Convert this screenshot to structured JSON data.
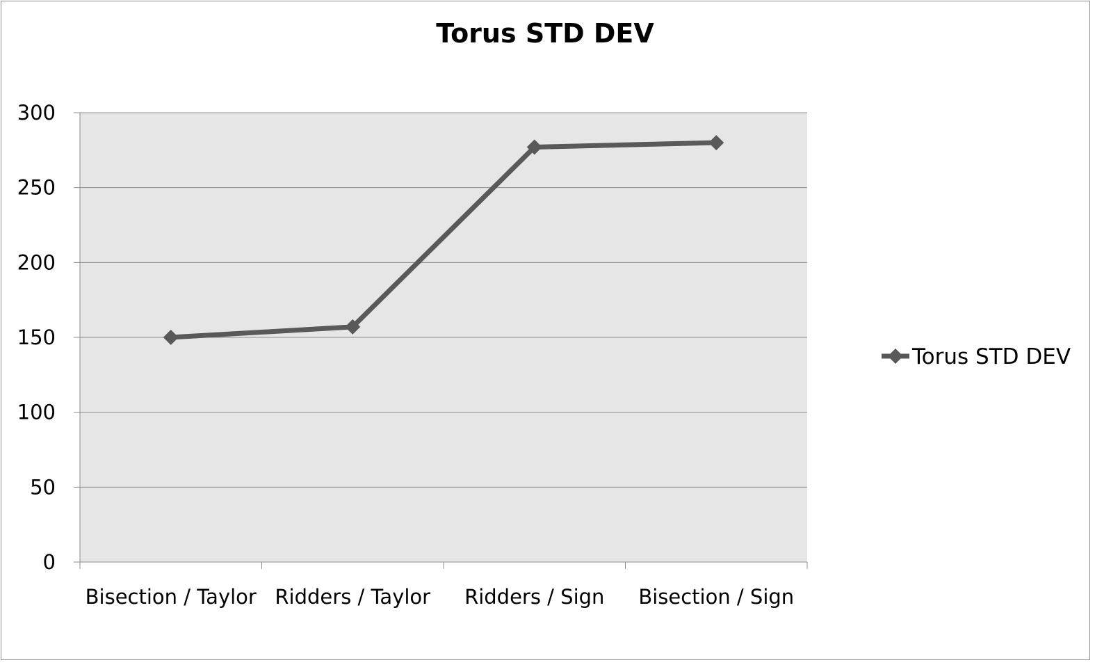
{
  "chart_data": {
    "type": "line",
    "title": "Torus STD DEV",
    "categories": [
      "Bisection / Taylor",
      "Ridders / Taylor",
      "Ridders / Sign",
      "Bisection / Sign"
    ],
    "series": [
      {
        "name": "Torus STD DEV",
        "values": [
          150,
          157,
          277,
          280
        ],
        "color": "#595959",
        "marker": "diamond"
      }
    ],
    "ylim": [
      0,
      300
    ],
    "yticks": [
      0,
      50,
      100,
      150,
      200,
      250,
      300
    ],
    "grid": true,
    "legend_position": "right",
    "plot_background": "#e6e6e6"
  }
}
